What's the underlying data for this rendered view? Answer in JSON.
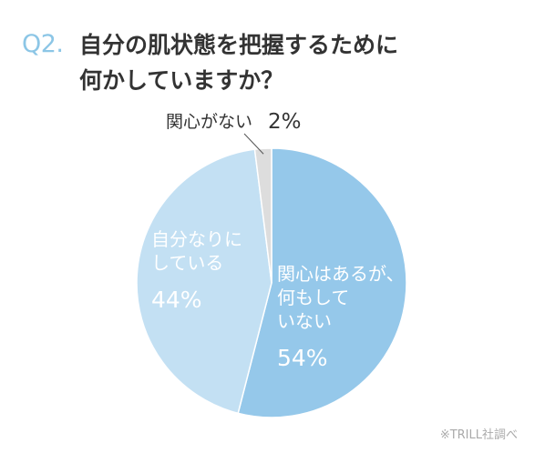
{
  "header": {
    "question_number": "Q2.",
    "question_line1": "自分の肌状態を把握するために",
    "question_line2": "何かしていますか？"
  },
  "source_note": "※TRILL社調べ",
  "colors": {
    "accent": "#8cc6e6",
    "slice_doing_nothing": "#95c8ea",
    "slice_grasping": "#c3e0f3",
    "slice_not_interested": "#dddddd",
    "label_white": "#ffffff",
    "text_dark": "#333333"
  },
  "chart_data": {
    "type": "pie",
    "title": "",
    "slices": [
      {
        "label_lines": [
          "関心はあるが、",
          "何もして",
          "いない"
        ],
        "value": 54,
        "value_label": "54%"
      },
      {
        "label_lines": [
          "自分なりに",
          "している"
        ],
        "value": 44,
        "value_label": "44%"
      },
      {
        "label_lines": [
          "関心がない"
        ],
        "value": 2,
        "value_label": "2%"
      }
    ],
    "start_angle": "12 o'clock",
    "direction": "clockwise",
    "legend": "none",
    "data_labels": "on-slice (outside callout for smallest slice)"
  }
}
